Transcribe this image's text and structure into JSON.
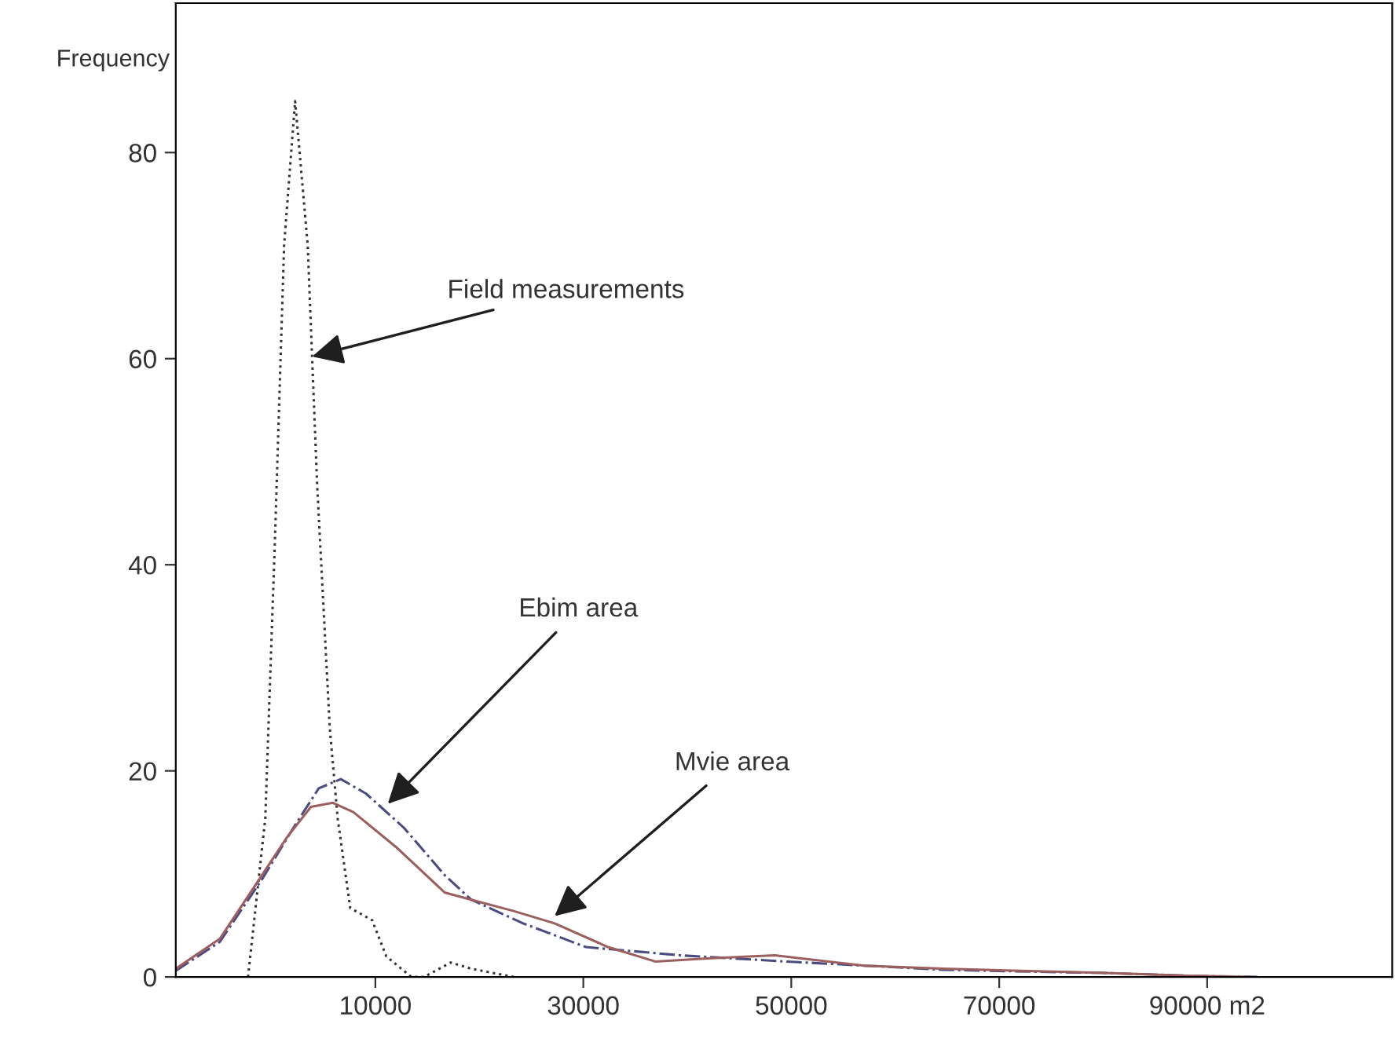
{
  "chart_data": {
    "type": "line",
    "ylabel": "Frequency",
    "xlim": [
      -9200,
      107800
    ],
    "ylim": [
      0,
      94.5
    ],
    "xticks": [
      10000,
      30000,
      50000,
      70000,
      {
        "value": 90000,
        "label": "90000 m2"
      }
    ],
    "yticks": [
      0,
      20,
      40,
      60,
      80
    ],
    "grid": false,
    "legend": false,
    "marker": "none",
    "series": [
      {
        "color": "#333333",
        "line_style": "dotted",
        "x": [
          -2250,
          -590,
          320,
          1220,
          2280,
          3490,
          4400,
          5610,
          6370,
          7580,
          9690,
          11050,
          13460,
          14680,
          17250,
          19220,
          23300
        ],
        "values": [
          0,
          15.4,
          41.8,
          71,
          85,
          71,
          47.7,
          24.2,
          15.4,
          6.7,
          5.5,
          2,
          0,
          0,
          1.4,
          0.8,
          0
        ]
      },
      {
        "color": "#4b4b80",
        "line_style": "dashdot",
        "x": [
          -9200,
          -4970,
          -890,
          2130,
          4550,
          6670,
          9090,
          12720,
          16650,
          19220,
          24210,
          30260,
          39340,
          49470,
          57030,
          64590,
          73670,
          79720,
          88790,
          94840
        ],
        "values": [
          0.6,
          3.4,
          9.5,
          14.5,
          18.3,
          19.2,
          17.8,
          14.5,
          9.9,
          7.5,
          5.2,
          2.9,
          2.1,
          1.5,
          1.1,
          0.7,
          0.5,
          0.4,
          0.1,
          0
        ]
      },
      {
        "color": "#9b5f5f",
        "line_style": "solid",
        "x": [
          -9200,
          -4970,
          -890,
          1530,
          3800,
          5910,
          7880,
          12110,
          16650,
          19220,
          23300,
          27240,
          32380,
          36920,
          41910,
          48410,
          57030,
          64590,
          79720,
          88790,
          94080
        ],
        "values": [
          0.8,
          3.7,
          9.9,
          13.6,
          16.5,
          16.9,
          16.0,
          12.5,
          8.2,
          7.5,
          6.4,
          5.2,
          2.9,
          1.5,
          1.8,
          2.1,
          1.1,
          0.8,
          0.4,
          0.1,
          0
        ]
      }
    ],
    "annotations": [
      {
        "text": "Field measurements",
        "x": 3910,
        "y": 60.2
      },
      {
        "text": "Ebim area",
        "x": 11190,
        "y": 16.8
      },
      {
        "text": "Mvie area",
        "x": 27240,
        "y": 5.9
      }
    ]
  }
}
